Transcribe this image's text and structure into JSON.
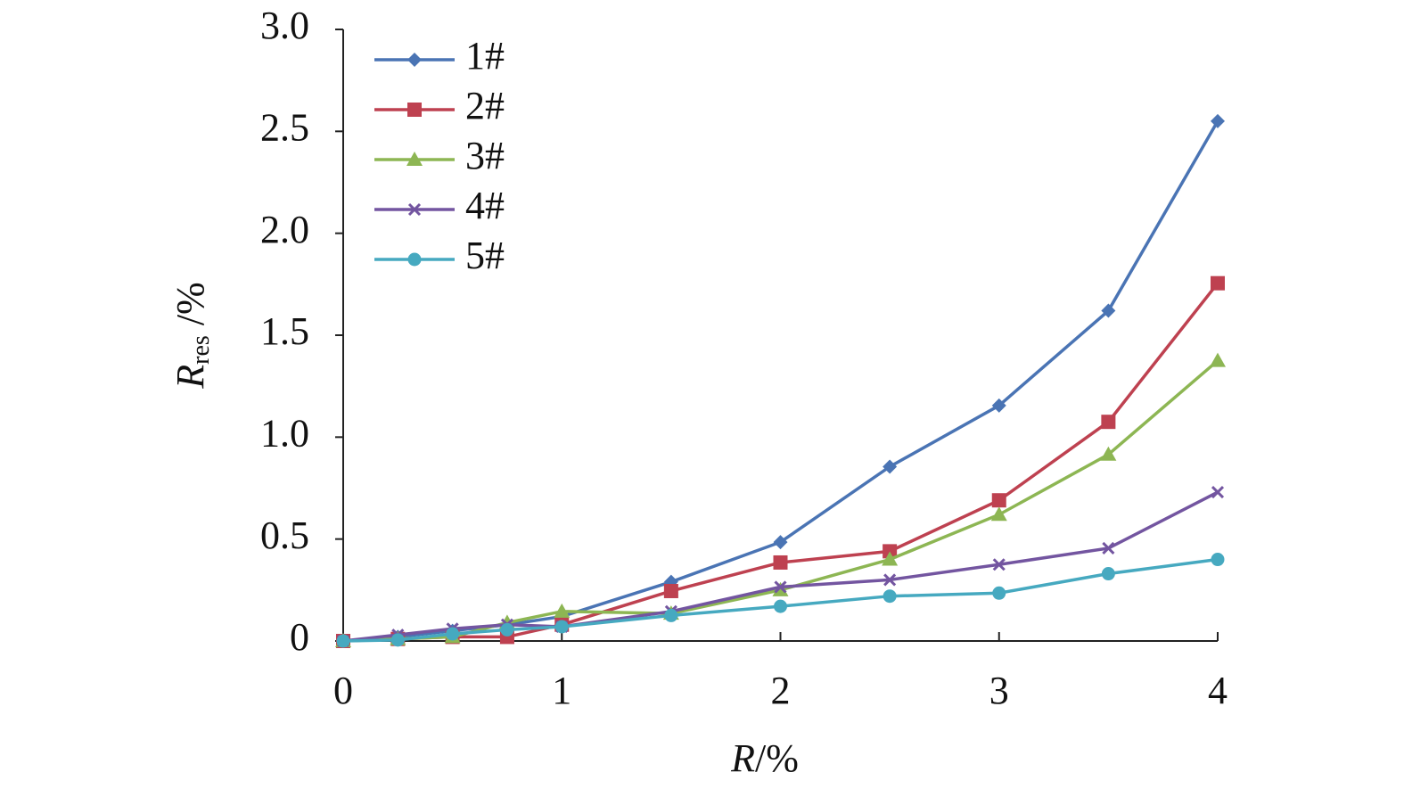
{
  "chart_data": {
    "type": "line",
    "xlabel": {
      "main": "R",
      "unit": "/%"
    },
    "ylabel": {
      "main": "R",
      "subscript": "res",
      "unit": " /%"
    },
    "x": [
      0,
      0.25,
      0.5,
      0.75,
      1,
      1.5,
      2,
      2.5,
      3,
      3.5,
      4
    ],
    "xlim": [
      0,
      4
    ],
    "xticks": [
      0,
      1,
      2,
      3,
      4
    ],
    "ylim": [
      0,
      3
    ],
    "yticks": [
      0,
      0.5,
      {
        "value": 1,
        "label": "1.0"
      },
      1.5,
      {
        "value": 2,
        "label": "2.0"
      },
      2.5,
      {
        "value": 3,
        "label": "3.0"
      }
    ],
    "legend": "top-left",
    "series": [
      {
        "name": "1#",
        "color": "#4a74b4",
        "marker": "diamond",
        "values": [
          0,
          0.02,
          0.05,
          0.08,
          0.12,
          0.29,
          0.485,
          0.855,
          1.155,
          1.62,
          2.55
        ]
      },
      {
        "name": "2#",
        "color": "#be4150",
        "marker": "square",
        "values": [
          0,
          0.01,
          0.02,
          0.02,
          0.08,
          0.245,
          0.385,
          0.44,
          0.69,
          1.075,
          1.755
        ]
      },
      {
        "name": "3#",
        "color": "#8db653",
        "marker": "triangle",
        "values": [
          0,
          0.01,
          0.02,
          0.09,
          0.145,
          0.135,
          0.25,
          0.4,
          0.62,
          0.915,
          1.375
        ]
      },
      {
        "name": "4#",
        "color": "#7355a0",
        "marker": "x",
        "values": [
          0,
          0.03,
          0.06,
          0.08,
          0.07,
          0.145,
          0.265,
          0.3,
          0.375,
          0.455,
          0.73
        ]
      },
      {
        "name": "5#",
        "color": "#46a9c0",
        "marker": "circle",
        "values": [
          0,
          0.005,
          0.035,
          0.055,
          0.07,
          0.125,
          0.17,
          0.22,
          0.235,
          0.33,
          0.4
        ]
      }
    ]
  }
}
